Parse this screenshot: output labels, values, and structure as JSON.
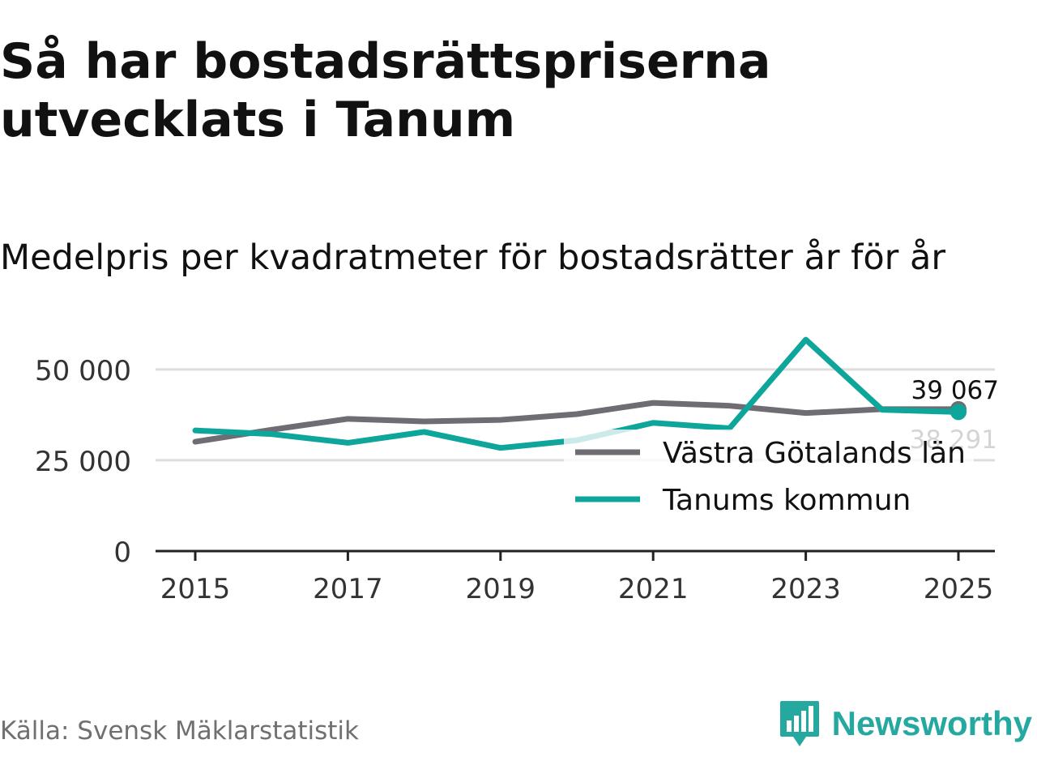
{
  "title": "Så har bostadsrättspriserna utvecklats i Tanum",
  "subtitle": "Medelpris per kvadratmeter för bostadsrätter år för år",
  "source": "Källa: Svensk Mäklarstatistik",
  "brand": {
    "name": "Newsworthy",
    "icon": "newsworthy-logo-icon",
    "color": "#24a8a0"
  },
  "chart_data": {
    "type": "line",
    "title": "Så har bostadsrättspriserna utvecklats i Tanum",
    "subtitle": "Medelpris per kvadratmeter för bostadsrätter år för år",
    "xlabel": "",
    "ylabel": "",
    "x": [
      2015,
      2016,
      2017,
      2018,
      2019,
      2020,
      2021,
      2022,
      2023,
      2024,
      2025
    ],
    "xticks": [
      "2015",
      "2017",
      "2019",
      "2021",
      "2023",
      "2025"
    ],
    "xticks_values": [
      2015,
      2017,
      2019,
      2021,
      2023,
      2025
    ],
    "yticks": [
      "0",
      "25 000",
      "50 000"
    ],
    "yticks_values": [
      0,
      25000,
      50000
    ],
    "ylim": [
      0,
      58000
    ],
    "xlim": [
      2014.5,
      2025.5
    ],
    "grid": "horizontal",
    "legend": "bottom-right",
    "series": [
      {
        "name": "Västra Götalands län",
        "color": "#6f6d73",
        "values": [
          30100,
          33400,
          36400,
          35700,
          36100,
          37700,
          40800,
          40000,
          38000,
          39067,
          39067
        ],
        "end_label": "39 067"
      },
      {
        "name": "Tanums kommun",
        "color": "#0ea59a",
        "values": [
          33200,
          32200,
          29800,
          32800,
          28400,
          30500,
          35300,
          33800,
          58200,
          38900,
          38291
        ],
        "end_label": "38 291"
      }
    ]
  }
}
